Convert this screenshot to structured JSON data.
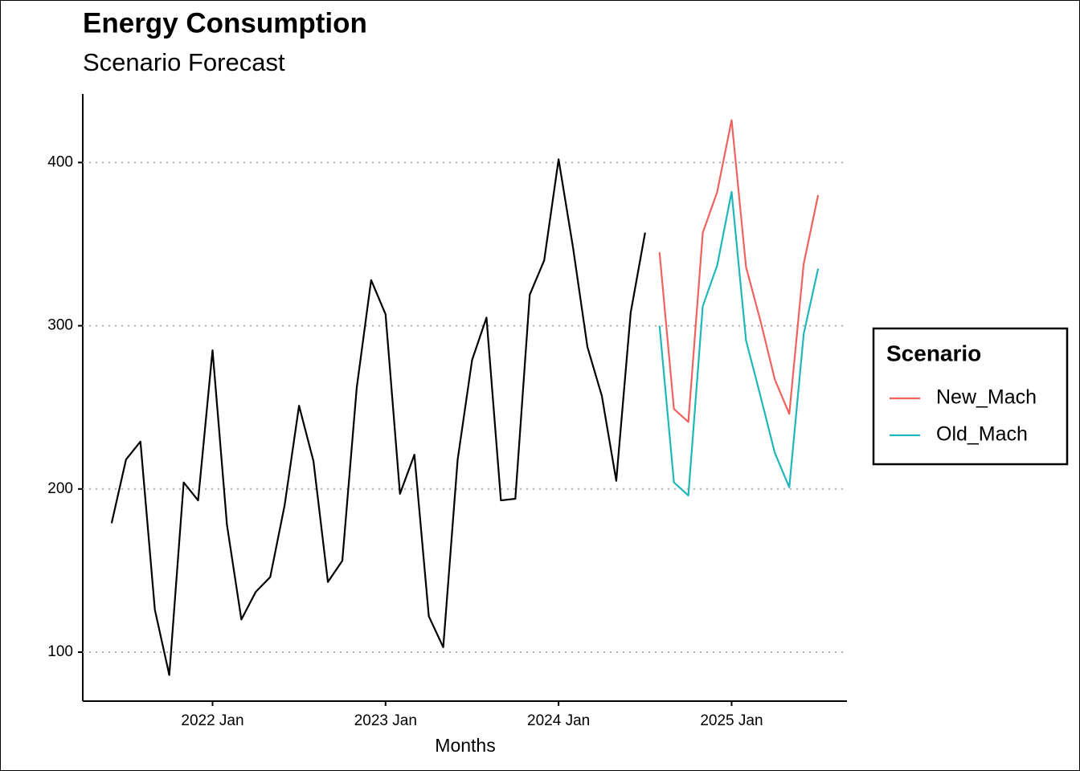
{
  "chart_data": {
    "type": "line",
    "title": "Energy Consumption",
    "subtitle": "Scenario Forecast",
    "x_label": "Months",
    "legend_title": "Scenario",
    "legend_position": "right",
    "x": [
      "2021 Jun",
      "2021 Jul",
      "2021 Aug",
      "2021 Sep",
      "2021 Oct",
      "2021 Nov",
      "2021 Dec",
      "2022 Jan",
      "2022 Feb",
      "2022 Mar",
      "2022 Apr",
      "2022 May",
      "2022 Jun",
      "2022 Jul",
      "2022 Aug",
      "2022 Sep",
      "2022 Oct",
      "2022 Nov",
      "2022 Dec",
      "2023 Jan",
      "2023 Feb",
      "2023 Mar",
      "2023 Apr",
      "2023 May",
      "2023 Jun",
      "2023 Jul",
      "2023 Aug",
      "2023 Sep",
      "2023 Oct",
      "2023 Nov",
      "2023 Dec",
      "2024 Jan",
      "2024 Feb",
      "2024 Mar",
      "2024 Apr",
      "2024 May",
      "2024 Jun",
      "2024 Jul",
      "2024 Aug",
      "2024 Sep",
      "2024 Oct",
      "2024 Nov",
      "2024 Dec",
      "2025 Jan",
      "2025 Feb",
      "2025 Mar",
      "2025 Apr",
      "2025 May",
      "2025 Jun",
      "2025 Jul"
    ],
    "history": {
      "color": "#000000",
      "values": [
        179,
        218,
        229,
        126,
        86,
        204,
        193,
        285,
        178,
        120,
        137,
        146,
        190,
        251,
        217,
        143,
        156,
        262,
        328,
        307,
        197,
        221,
        122,
        103,
        218,
        279,
        305,
        193,
        194,
        319,
        340,
        402,
        348,
        287,
        257,
        205,
        308,
        357,
        null,
        null,
        null,
        null,
        null,
        null,
        null,
        null,
        null,
        null,
        null,
        null
      ]
    },
    "series": [
      {
        "name": "New_Mach",
        "color": "#f0625e",
        "values": [
          null,
          null,
          null,
          null,
          null,
          null,
          null,
          null,
          null,
          null,
          null,
          null,
          null,
          null,
          null,
          null,
          null,
          null,
          null,
          null,
          null,
          null,
          null,
          null,
          null,
          null,
          null,
          null,
          null,
          null,
          null,
          null,
          null,
          null,
          null,
          null,
          null,
          null,
          345,
          249,
          241,
          357,
          382,
          426,
          336,
          303,
          267,
          246,
          338,
          380
        ]
      },
      {
        "name": "Old_Mach",
        "color": "#1fb7b9",
        "values": [
          null,
          null,
          null,
          null,
          null,
          null,
          null,
          null,
          null,
          null,
          null,
          null,
          null,
          null,
          null,
          null,
          null,
          null,
          null,
          null,
          null,
          null,
          null,
          null,
          null,
          null,
          null,
          null,
          null,
          null,
          null,
          null,
          null,
          null,
          null,
          null,
          null,
          null,
          300,
          204,
          196,
          312,
          337,
          382,
          291,
          257,
          222,
          201,
          295,
          335
        ]
      }
    ],
    "xlim": [
      "2021 Apr",
      "2025 Sep"
    ],
    "xticks": [
      "2022 Jan",
      "2023 Jan",
      "2024 Jan",
      "2025 Jan"
    ],
    "ylim": [
      70,
      442
    ],
    "yticks": [
      100,
      200,
      300,
      400
    ],
    "grid": true
  }
}
